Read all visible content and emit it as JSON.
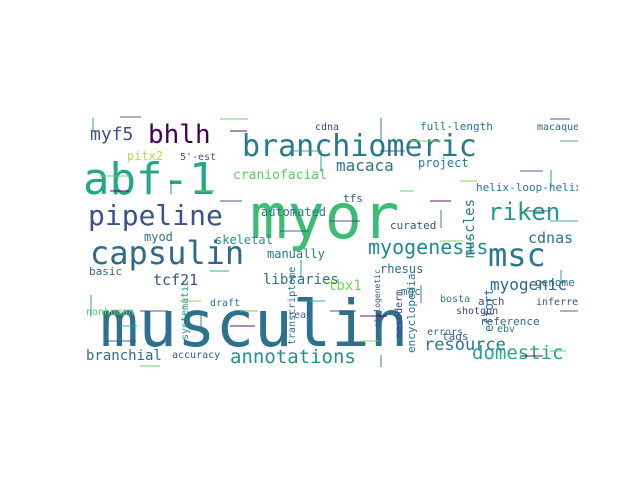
{
  "words": [
    {
      "text": "musculin",
      "color": "#2c728e"
    },
    {
      "text": "myor",
      "color": "#3dbc74"
    },
    {
      "text": "abf-1",
      "color": "#22a884"
    },
    {
      "text": "branchiomeric",
      "color": "#2a788e"
    },
    {
      "text": "capsulin",
      "color": "#31688e"
    },
    {
      "text": "msc",
      "color": "#2a788e"
    },
    {
      "text": "pipeline",
      "color": "#3b528b"
    },
    {
      "text": "bhlh",
      "color": "#440154"
    },
    {
      "text": "myogenesis",
      "color": "#23898e"
    },
    {
      "text": "riken",
      "color": "#1e9b8a"
    },
    {
      "text": "annotations",
      "color": "#21918c"
    },
    {
      "text": "domestic",
      "color": "#22a884"
    },
    {
      "text": "resource",
      "color": "#2a788e"
    },
    {
      "text": "myogenic",
      "color": "#31688e"
    },
    {
      "text": "myf5",
      "color": "#3b528b"
    },
    {
      "text": "macaca",
      "color": "#2c728e"
    },
    {
      "text": "muscles",
      "color": "#2a788e"
    },
    {
      "text": "cdnas",
      "color": "#2c728e"
    },
    {
      "text": "tcf21",
      "color": "#3b528b"
    },
    {
      "text": "libraries",
      "color": "#2c728e"
    },
    {
      "text": "branchial",
      "color": "#31688e"
    },
    {
      "text": "tbx1",
      "color": "#7ad151"
    },
    {
      "text": "myod",
      "color": "#2c728e"
    },
    {
      "text": "skeletal",
      "color": "#21918c"
    },
    {
      "text": "automated",
      "color": "#2a788e"
    },
    {
      "text": "craniofacial",
      "color": "#5ec962"
    },
    {
      "text": "manually",
      "color": "#2a788e"
    },
    {
      "text": "tfs",
      "color": "#3b528b"
    },
    {
      "text": "basic",
      "color": "#31688e"
    },
    {
      "text": "mgc",
      "color": "#2c728e"
    },
    {
      "text": "rhesus",
      "color": "#31688e"
    },
    {
      "text": "arch",
      "color": "#3b528b"
    },
    {
      "text": "curated",
      "color": "#3b528b"
    },
    {
      "text": "accuracy",
      "color": "#3b528b"
    },
    {
      "text": "tags",
      "color": "#31688e"
    },
    {
      "text": "shotgun",
      "color": "#414487"
    },
    {
      "text": "mesoderm",
      "color": "#414487"
    },
    {
      "text": "encyclopedia",
      "color": "#2c728e"
    },
    {
      "text": "helix-loop-helix",
      "color": "#2a788e"
    },
    {
      "text": "full-length",
      "color": "#2a788e"
    },
    {
      "text": "macaque",
      "color": "#31688e"
    },
    {
      "text": "project",
      "color": "#2a788e"
    },
    {
      "text": "genome",
      "color": "#31688e"
    },
    {
      "text": "inferred",
      "color": "#3b528b"
    },
    {
      "text": "reference",
      "color": "#31688e"
    },
    {
      "text": "errors",
      "color": "#31688e"
    },
    {
      "text": "effort",
      "color": "#2c728e"
    },
    {
      "text": "ebv",
      "color": "#2a788e"
    },
    {
      "text": "pitx2",
      "color": "#bddf26"
    },
    {
      "text": "5'-est",
      "color": "#3b528b"
    },
    {
      "text": "cdna",
      "color": "#414487"
    },
    {
      "text": "nonhuman",
      "color": "#5ec962"
    },
    {
      "text": "systematic",
      "color": "#21918c"
    },
    {
      "text": "draft",
      "color": "#2c728e"
    },
    {
      "text": "read",
      "color": "#31688e"
    },
    {
      "text": "transcriptome",
      "color": "#2c728e"
    },
    {
      "text": "bosta",
      "color": "#2a788e"
    },
    {
      "text": "phylogenetic",
      "color": "#3b528b"
    }
  ]
}
